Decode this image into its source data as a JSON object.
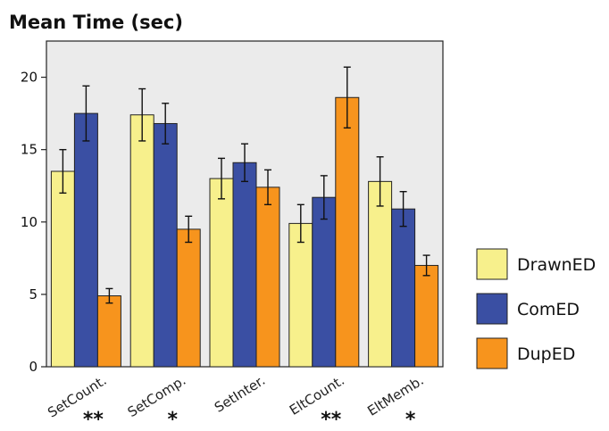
{
  "chart_data": {
    "type": "bar",
    "title": "Mean Time (sec)",
    "categories": [
      "SetCount.",
      "SetComp.",
      "SetInter.",
      "EltCount.",
      "EltMemb."
    ],
    "significance": [
      "**",
      "*",
      "",
      "**",
      "*"
    ],
    "series": [
      {
        "name": "DrawnED",
        "color": "#f7f08c",
        "values": [
          13.5,
          17.4,
          13.0,
          9.9,
          12.8
        ],
        "errors": [
          1.5,
          1.8,
          1.4,
          1.3,
          1.7
        ]
      },
      {
        "name": "ComED",
        "color": "#3a4fa3",
        "values": [
          17.5,
          16.8,
          14.1,
          11.7,
          10.9
        ],
        "errors": [
          1.9,
          1.4,
          1.3,
          1.5,
          1.2
        ]
      },
      {
        "name": "DupED",
        "color": "#f7941d",
        "values": [
          4.9,
          9.5,
          12.4,
          18.6,
          7.0
        ],
        "errors": [
          0.5,
          0.9,
          1.2,
          2.1,
          0.7
        ]
      }
    ],
    "yticks": [
      0,
      5,
      10,
      15,
      20
    ],
    "ylim": [
      0,
      22.5
    ],
    "grid": false,
    "legend_position": "right",
    "plot_background": "#ebebeb"
  }
}
